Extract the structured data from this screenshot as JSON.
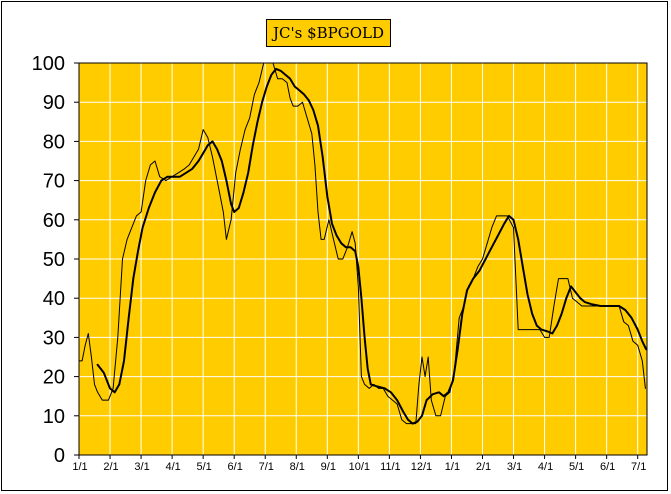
{
  "chart_data": {
    "type": "line",
    "title": "JC's $BPGOLD",
    "xlabel": "",
    "ylabel": "",
    "ylim": [
      0,
      100
    ],
    "yticks": [
      0,
      10,
      20,
      30,
      40,
      50,
      60,
      70,
      80,
      90,
      100
    ],
    "categories": [
      "1/1",
      "2/1",
      "3/1",
      "4/1",
      "5/1",
      "6/1",
      "7/1",
      "8/1",
      "9/1",
      "10/1",
      "11/1",
      "12/1",
      "1/1",
      "2/1",
      "3/1",
      "4/1",
      "5/1",
      "6/1",
      "7/1"
    ],
    "xlim": [
      0,
      18.3
    ],
    "grid": true,
    "plot_background": "#FFCC00",
    "grid_color": "#ffffff",
    "series": [
      {
        "line_width": 1,
        "points": [
          [
            0.0,
            24
          ],
          [
            0.1,
            24
          ],
          [
            0.2,
            28
          ],
          [
            0.3,
            31
          ],
          [
            0.4,
            25
          ],
          [
            0.5,
            18
          ],
          [
            0.6,
            16
          ],
          [
            0.75,
            14
          ],
          [
            0.95,
            14
          ],
          [
            1.1,
            17
          ],
          [
            1.25,
            30
          ],
          [
            1.4,
            50
          ],
          [
            1.55,
            55
          ],
          [
            1.7,
            58
          ],
          [
            1.85,
            61
          ],
          [
            2.0,
            62
          ],
          [
            2.15,
            70
          ],
          [
            2.3,
            74
          ],
          [
            2.45,
            75
          ],
          [
            2.6,
            71
          ],
          [
            2.8,
            70
          ],
          [
            3.0,
            71
          ],
          [
            3.2,
            72
          ],
          [
            3.4,
            73
          ],
          [
            3.55,
            74
          ],
          [
            3.7,
            76
          ],
          [
            3.85,
            78
          ],
          [
            4.0,
            83
          ],
          [
            4.15,
            81
          ],
          [
            4.3,
            76
          ],
          [
            4.5,
            68
          ],
          [
            4.65,
            62
          ],
          [
            4.75,
            55
          ],
          [
            4.9,
            60
          ],
          [
            5.05,
            72
          ],
          [
            5.2,
            78
          ],
          [
            5.35,
            83
          ],
          [
            5.5,
            86
          ],
          [
            5.65,
            92
          ],
          [
            5.8,
            95
          ],
          [
            5.95,
            100
          ],
          [
            6.1,
            100
          ],
          [
            6.25,
            100
          ],
          [
            6.4,
            96
          ],
          [
            6.55,
            96
          ],
          [
            6.7,
            95
          ],
          [
            6.8,
            91
          ],
          [
            6.9,
            89
          ],
          [
            7.05,
            89
          ],
          [
            7.2,
            90
          ],
          [
            7.35,
            86
          ],
          [
            7.5,
            82
          ],
          [
            7.6,
            74
          ],
          [
            7.7,
            62
          ],
          [
            7.8,
            55
          ],
          [
            7.9,
            55
          ],
          [
            8.05,
            60
          ],
          [
            8.2,
            55
          ],
          [
            8.35,
            50
          ],
          [
            8.5,
            50
          ],
          [
            8.65,
            53
          ],
          [
            8.8,
            57
          ],
          [
            8.9,
            54
          ],
          [
            9.0,
            43
          ],
          [
            9.1,
            20
          ],
          [
            9.2,
            18
          ],
          [
            9.35,
            17
          ],
          [
            9.5,
            18
          ],
          [
            9.65,
            17
          ],
          [
            9.8,
            17
          ],
          [
            9.95,
            15
          ],
          [
            10.1,
            14
          ],
          [
            10.25,
            13
          ],
          [
            10.4,
            9
          ],
          [
            10.55,
            8
          ],
          [
            10.7,
            8
          ],
          [
            10.85,
            8
          ],
          [
            10.95,
            18
          ],
          [
            11.05,
            25
          ],
          [
            11.15,
            20
          ],
          [
            11.25,
            25
          ],
          [
            11.35,
            14
          ],
          [
            11.5,
            10
          ],
          [
            11.65,
            10
          ],
          [
            11.8,
            15
          ],
          [
            11.95,
            16
          ],
          [
            12.1,
            22
          ],
          [
            12.25,
            35
          ],
          [
            12.4,
            38
          ],
          [
            12.55,
            43
          ],
          [
            12.7,
            45
          ],
          [
            12.85,
            48
          ],
          [
            13.0,
            50
          ],
          [
            13.15,
            54
          ],
          [
            13.3,
            58
          ],
          [
            13.45,
            61
          ],
          [
            13.6,
            61
          ],
          [
            13.8,
            61
          ],
          [
            14.0,
            58
          ],
          [
            14.15,
            32
          ],
          [
            14.3,
            32
          ],
          [
            14.5,
            32
          ],
          [
            14.7,
            32
          ],
          [
            14.85,
            32
          ],
          [
            15.0,
            30
          ],
          [
            15.15,
            30
          ],
          [
            15.3,
            38
          ],
          [
            15.45,
            45
          ],
          [
            15.6,
            45
          ],
          [
            15.75,
            45
          ],
          [
            15.9,
            40
          ],
          [
            16.05,
            39
          ],
          [
            16.2,
            38
          ],
          [
            16.5,
            38
          ],
          [
            16.8,
            38
          ],
          [
            17.1,
            38
          ],
          [
            17.4,
            38
          ],
          [
            17.55,
            34
          ],
          [
            17.7,
            33
          ],
          [
            17.85,
            29
          ],
          [
            18.0,
            28
          ],
          [
            18.15,
            24
          ],
          [
            18.25,
            17
          ]
        ]
      },
      {
        "line_width": 2,
        "points": [
          [
            0.6,
            23
          ],
          [
            0.8,
            21
          ],
          [
            1.0,
            17
          ],
          [
            1.15,
            16
          ],
          [
            1.3,
            18
          ],
          [
            1.45,
            24
          ],
          [
            1.6,
            35
          ],
          [
            1.75,
            45
          ],
          [
            1.9,
            52
          ],
          [
            2.05,
            58
          ],
          [
            2.25,
            63
          ],
          [
            2.45,
            67
          ],
          [
            2.65,
            70
          ],
          [
            2.85,
            71
          ],
          [
            3.05,
            71
          ],
          [
            3.25,
            71
          ],
          [
            3.45,
            72
          ],
          [
            3.65,
            73
          ],
          [
            3.85,
            75
          ],
          [
            4.0,
            77
          ],
          [
            4.15,
            79
          ],
          [
            4.3,
            80
          ],
          [
            4.45,
            78
          ],
          [
            4.6,
            75
          ],
          [
            4.75,
            70
          ],
          [
            4.9,
            64
          ],
          [
            5.0,
            62
          ],
          [
            5.15,
            63
          ],
          [
            5.3,
            67
          ],
          [
            5.45,
            72
          ],
          [
            5.6,
            79
          ],
          [
            5.75,
            85
          ],
          [
            5.9,
            90
          ],
          [
            6.05,
            94
          ],
          [
            6.2,
            97
          ],
          [
            6.35,
            98.5
          ],
          [
            6.5,
            98
          ],
          [
            6.65,
            97
          ],
          [
            6.8,
            96
          ],
          [
            6.95,
            94
          ],
          [
            7.1,
            93
          ],
          [
            7.25,
            92
          ],
          [
            7.4,
            90.5
          ],
          [
            7.55,
            88
          ],
          [
            7.7,
            84
          ],
          [
            7.85,
            76
          ],
          [
            8.0,
            66
          ],
          [
            8.15,
            59
          ],
          [
            8.3,
            56
          ],
          [
            8.45,
            54
          ],
          [
            8.6,
            53
          ],
          [
            8.75,
            53
          ],
          [
            8.9,
            52
          ],
          [
            9.0,
            48
          ],
          [
            9.1,
            40
          ],
          [
            9.2,
            30
          ],
          [
            9.3,
            22
          ],
          [
            9.4,
            18
          ],
          [
            9.6,
            17.5
          ],
          [
            9.85,
            17
          ],
          [
            10.05,
            16
          ],
          [
            10.25,
            14
          ],
          [
            10.45,
            11
          ],
          [
            10.6,
            9
          ],
          [
            10.75,
            8
          ],
          [
            10.9,
            8.5
          ],
          [
            11.05,
            10
          ],
          [
            11.2,
            14
          ],
          [
            11.4,
            15.5
          ],
          [
            11.6,
            16
          ],
          [
            11.75,
            15
          ],
          [
            11.9,
            16
          ],
          [
            12.05,
            19
          ],
          [
            12.2,
            27
          ],
          [
            12.35,
            36
          ],
          [
            12.5,
            42
          ],
          [
            12.7,
            45
          ],
          [
            12.9,
            47
          ],
          [
            13.1,
            50
          ],
          [
            13.3,
            53
          ],
          [
            13.5,
            56
          ],
          [
            13.7,
            59
          ],
          [
            13.85,
            61
          ],
          [
            14.0,
            60
          ],
          [
            14.15,
            55
          ],
          [
            14.3,
            48
          ],
          [
            14.45,
            41
          ],
          [
            14.6,
            36
          ],
          [
            14.75,
            33
          ],
          [
            14.9,
            32
          ],
          [
            15.1,
            31.5
          ],
          [
            15.25,
            31
          ],
          [
            15.4,
            33
          ],
          [
            15.55,
            36
          ],
          [
            15.7,
            40
          ],
          [
            15.85,
            43
          ],
          [
            16.0,
            41.5
          ],
          [
            16.15,
            40
          ],
          [
            16.3,
            39
          ],
          [
            16.5,
            38.5
          ],
          [
            16.8,
            38
          ],
          [
            17.1,
            38
          ],
          [
            17.4,
            38
          ],
          [
            17.6,
            37
          ],
          [
            17.8,
            35
          ],
          [
            18.0,
            32
          ],
          [
            18.15,
            29
          ],
          [
            18.27,
            27
          ]
        ]
      }
    ]
  }
}
